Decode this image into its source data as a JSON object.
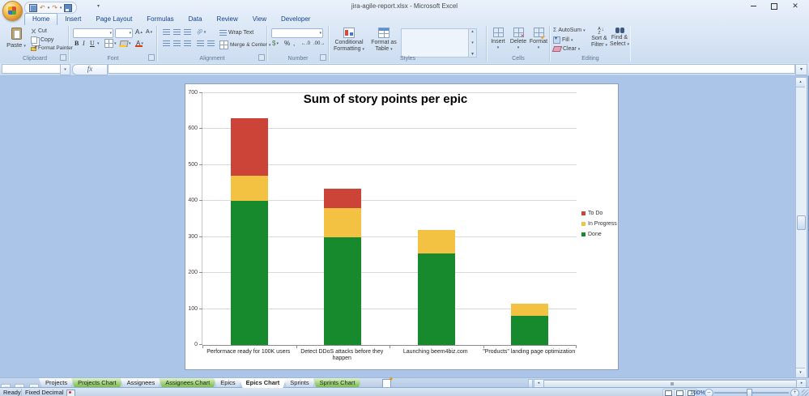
{
  "window": {
    "title": "jira-agile-report.xlsx - Microsoft Excel"
  },
  "ribbon": {
    "tabs": [
      {
        "label": "Home",
        "active": true
      },
      {
        "label": "Insert",
        "active": false
      },
      {
        "label": "Page Layout",
        "active": false
      },
      {
        "label": "Formulas",
        "active": false
      },
      {
        "label": "Data",
        "active": false
      },
      {
        "label": "Review",
        "active": false
      },
      {
        "label": "View",
        "active": false
      },
      {
        "label": "Developer",
        "active": false
      }
    ],
    "clipboard": {
      "label": "Clipboard",
      "paste": "Paste",
      "cut": "Cut",
      "copy": "Copy",
      "format_painter": "Format Painter"
    },
    "font": {
      "label": "Font",
      "bold": "B",
      "italic": "I",
      "underline": "U"
    },
    "alignment": {
      "label": "Alignment",
      "wrap_text": "Wrap Text",
      "merge_center": "Merge & Center"
    },
    "number": {
      "label": "Number",
      "currency": "$",
      "percent": "%",
      "comma": ","
    },
    "styles": {
      "label": "Styles",
      "conditional": "Conditional Formatting",
      "format_table": "Format as Table"
    },
    "cells": {
      "label": "Cells",
      "insert": "Insert",
      "delete": "Delete",
      "format": "Format"
    },
    "editing": {
      "label": "Editing",
      "autosum": "AutoSum",
      "autosum_sigma": "Σ",
      "fill": "Fill",
      "clear": "Clear",
      "sort": "Sort & Filter",
      "find": "Find & Select"
    }
  },
  "formula_bar": {
    "name_box_value": "",
    "formula_value": "",
    "fx_label": "fx"
  },
  "chart_data": {
    "type": "bar",
    "stacked": true,
    "title": "Sum of story points per epic",
    "categories": [
      "Performace ready for 100K users",
      "Detect DDoS attacks before they happen",
      "Launching beem4biz.com",
      "\"Products\" landing page optimization"
    ],
    "series": [
      {
        "name": "Done",
        "color": "#178A2E",
        "values": [
          400,
          300,
          255,
          80
        ]
      },
      {
        "name": "In Progress",
        "color": "#F4C242",
        "values": [
          70,
          80,
          65,
          35
        ]
      },
      {
        "name": "To Do",
        "color": "#CC4437",
        "values": [
          160,
          55,
          0,
          0
        ]
      }
    ],
    "legend_order": [
      "To Do",
      "In Progress",
      "Done"
    ],
    "legend_position": "right",
    "grid": true,
    "xlabel": "",
    "ylabel": "",
    "ylim": [
      0,
      700
    ],
    "ytick_step": 100
  },
  "sheet_tabs": {
    "tabs": [
      {
        "label": "Projects",
        "style": "plain"
      },
      {
        "label": "Projects Chart",
        "style": "green"
      },
      {
        "label": "Assignees",
        "style": "plain"
      },
      {
        "label": "Assignees Chart",
        "style": "green"
      },
      {
        "label": "Epics",
        "style": "plain"
      },
      {
        "label": "Epics Chart",
        "style": "active"
      },
      {
        "label": "Sprints",
        "style": "plain"
      },
      {
        "label": "Sprints Chart",
        "style": "green"
      }
    ]
  },
  "status_bar": {
    "mode": "Ready",
    "indicator": "Fixed Decimal",
    "zoom_level": "100%"
  }
}
